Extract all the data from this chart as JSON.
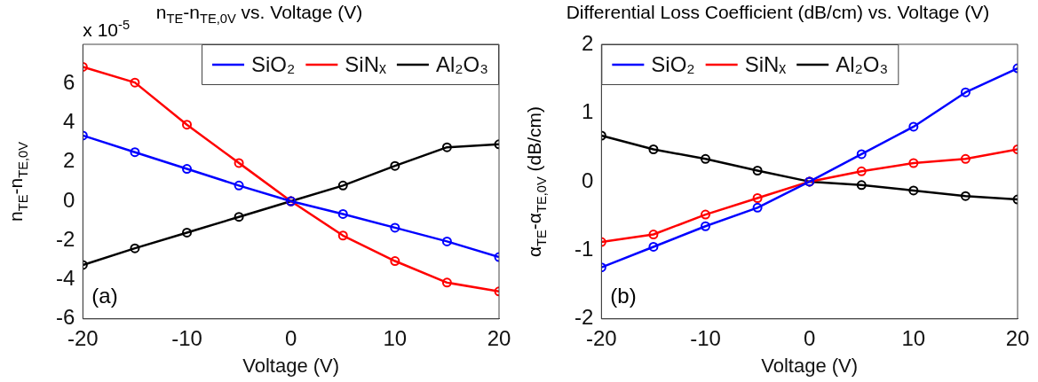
{
  "chart_data": [
    {
      "type": "line",
      "title": "n$_{TE}$-n$_{TE,0V}$ vs. Voltage (V)",
      "xlabel": "Voltage (V)",
      "ylabel": "n$_{TE}$-n$_{TE,0V}$",
      "x": [
        -20,
        -15,
        -10,
        -5,
        0,
        5,
        10,
        15,
        20
      ],
      "series": [
        {
          "name": "SiO₂",
          "color": "#0000ff",
          "values": [
            3.35,
            2.5,
            1.65,
            0.8,
            0,
            -0.65,
            -1.35,
            -2.05,
            -2.85
          ]
        },
        {
          "name": "SiNₓ",
          "color": "#ff0000",
          "values": [
            6.85,
            6.05,
            3.9,
            1.95,
            0,
            -1.75,
            -3.05,
            -4.15,
            -4.6
          ]
        },
        {
          "name": "Al₂O₃",
          "color": "#000000",
          "values": [
            -3.25,
            -2.4,
            -1.6,
            -0.8,
            0,
            0.8,
            1.8,
            2.75,
            2.9
          ]
        }
      ],
      "xlim": [
        -20,
        20
      ],
      "xticks": [
        -20,
        -10,
        0,
        10,
        20
      ],
      "ylim": [
        -6,
        8
      ],
      "yticks": [
        -6,
        -4,
        -2,
        0,
        2,
        4,
        6
      ],
      "legend": "top right",
      "marker": "circle",
      "line_style": "solid",
      "grid": false,
      "annotations": [
        "x 10$^{-5}$",
        "(a)"
      ]
    },
    {
      "type": "line",
      "title": "Differential Loss Coefficient (dB/cm) vs. Voltage (V)",
      "xlabel": "Voltage (V)",
      "ylabel": "α$_{TE}$-α$_{TE,0V}$ (dB/cm)",
      "x": [
        -20,
        -15,
        -10,
        -5,
        0,
        5,
        10,
        15,
        20
      ],
      "series": [
        {
          "name": "SiO₂",
          "color": "#0000ff",
          "values": [
            -1.25,
            -0.95,
            -0.65,
            -0.38,
            0,
            0.4,
            0.8,
            1.3,
            1.65
          ]
        },
        {
          "name": "SiNₓ",
          "color": "#ff0000",
          "values": [
            -0.88,
            -0.77,
            -0.48,
            -0.24,
            0,
            0.15,
            0.27,
            0.33,
            0.47
          ]
        },
        {
          "name": "Al₂O₃",
          "color": "#000000",
          "values": [
            0.67,
            0.47,
            0.33,
            0.16,
            0,
            -0.05,
            -0.13,
            -0.21,
            -0.26
          ]
        }
      ],
      "xlim": [
        -20,
        20
      ],
      "xticks": [
        -20,
        -10,
        0,
        10,
        20
      ],
      "ylim": [
        -2,
        2
      ],
      "yticks": [
        -2,
        -1,
        0,
        1,
        2
      ],
      "legend": "top left",
      "marker": "circle",
      "line_style": "solid",
      "grid": false,
      "annotations": [
        "(b)"
      ]
    }
  ]
}
